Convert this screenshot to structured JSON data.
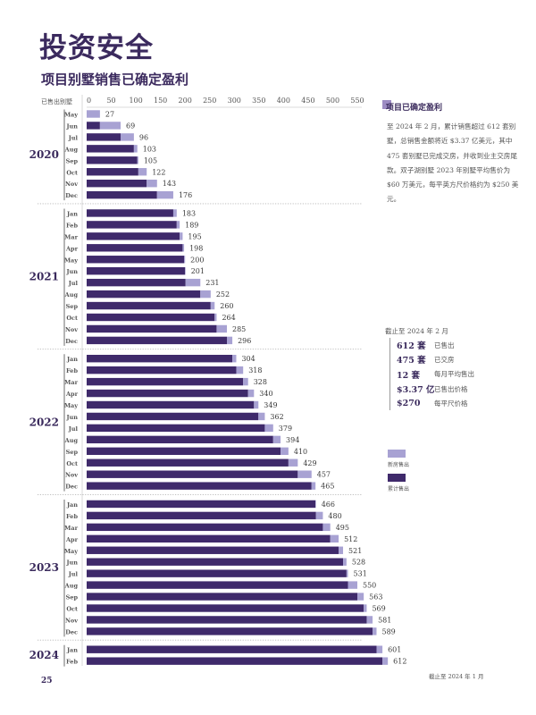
{
  "page": {
    "title": "投资安全",
    "subtitle": "项目别墅销售已确定盈利",
    "page_number": "25",
    "footnote": "截止至 2024 年 1 月"
  },
  "panel": {
    "title": "项目已确定盈利",
    "body": "至 2024 年 2 月，累计销售超过 612 套别墅，总销售金额将近 $3.37 亿美元，其中 475 套别墅已完成交房，并收到业主交房尾款。双子湖别墅 2023 年别墅平均售价为 $60 万美元，每平英方尺价格约为 $250 美元。",
    "asof": "截止至 2024 年 2 月",
    "stats": [
      {
        "value": "612 套",
        "label": "已售出"
      },
      {
        "value": "475 套",
        "label": "已交房"
      },
      {
        "value": "12 套",
        "label": "每月平均售出"
      },
      {
        "value": "$3.37 亿",
        "label": "已售出价格"
      },
      {
        "value": "$270",
        "label": "每平尺价格"
      }
    ]
  },
  "colors": {
    "cumulative": "#3f2a6b",
    "new": "#a8a2d3",
    "separator": "#b5b5b5"
  },
  "chart_data": {
    "type": "bar",
    "orientation": "horizontal",
    "stacked": true,
    "title": "项目别墅销售已确定盈利",
    "ylabel": "已售出别墅",
    "xlim": [
      0,
      550
    ],
    "xticks": [
      0,
      50,
      100,
      150,
      200,
      250,
      300,
      350,
      400,
      450,
      500,
      550
    ],
    "legend": [
      {
        "name": "新房售出",
        "key": "new"
      },
      {
        "name": "累计售出",
        "key": "cumulative"
      }
    ],
    "legend_position": "right",
    "groups": [
      {
        "year": "2020",
        "months": [
          "May",
          "Jun",
          "Jul",
          "Aug",
          "Sep",
          "Oct",
          "Nov",
          "Dec"
        ],
        "totals": [
          27,
          69,
          96,
          103,
          105,
          122,
          143,
          176
        ]
      },
      {
        "year": "2021",
        "months": [
          "Jan",
          "Feb",
          "Mar",
          "Apr",
          "May",
          "Jun",
          "Jul",
          "Aug",
          "Sep",
          "Oct",
          "Nov",
          "Dec"
        ],
        "totals": [
          183,
          189,
          195,
          198,
          200,
          201,
          231,
          252,
          260,
          264,
          285,
          296
        ]
      },
      {
        "year": "2022",
        "months": [
          "Jan",
          "Feb",
          "Mar",
          "Apr",
          "May",
          "Jun",
          "Jul",
          "Aug",
          "Sep",
          "Oct",
          "Nov",
          "Dec"
        ],
        "totals": [
          304,
          318,
          328,
          340,
          349,
          362,
          379,
          394,
          410,
          429,
          457,
          465
        ]
      },
      {
        "year": "2023",
        "months": [
          "Jan",
          "Feb",
          "Mar",
          "Apr",
          "May",
          "Jun",
          "Jul",
          "Aug",
          "Sep",
          "Oct",
          "Nov",
          "Dec"
        ],
        "totals": [
          466,
          480,
          495,
          512,
          521,
          528,
          531,
          550,
          563,
          569,
          581,
          589
        ]
      },
      {
        "year": "2024",
        "months": [
          "Jan",
          "Feb"
        ],
        "totals": [
          601,
          612
        ]
      }
    ]
  }
}
